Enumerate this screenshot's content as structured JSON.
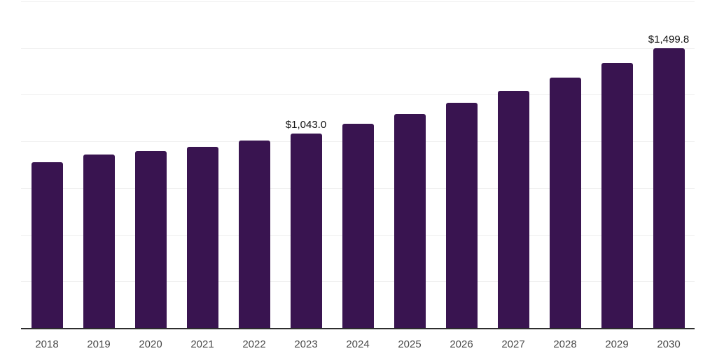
{
  "chart_data": {
    "type": "bar",
    "title": "",
    "xlabel": "",
    "ylabel": "",
    "categories": [
      "2018",
      "2019",
      "2020",
      "2021",
      "2022",
      "2023",
      "2024",
      "2025",
      "2026",
      "2027",
      "2028",
      "2029",
      "2030"
    ],
    "values": [
      888.0,
      930.0,
      950.0,
      971.0,
      1005.0,
      1043.0,
      1093.0,
      1147.0,
      1207.0,
      1271.0,
      1342.0,
      1419.0,
      1499.8
    ],
    "data_labels": [
      "",
      "",
      "",
      "",
      "",
      "$1,043.0",
      "",
      "",
      "",
      "",
      "",
      "",
      "$1,499.8"
    ],
    "ylim": [
      0,
      1750
    ],
    "grid_step": 250,
    "grid": true,
    "legend_position": "none",
    "colors": {
      "bar": "#391450",
      "gridline": "#f0f0f0",
      "axis_line": "#2e2e2e",
      "tick_label": "#4a4a4a",
      "data_label": "#111111",
      "background": "#ffffff"
    }
  }
}
